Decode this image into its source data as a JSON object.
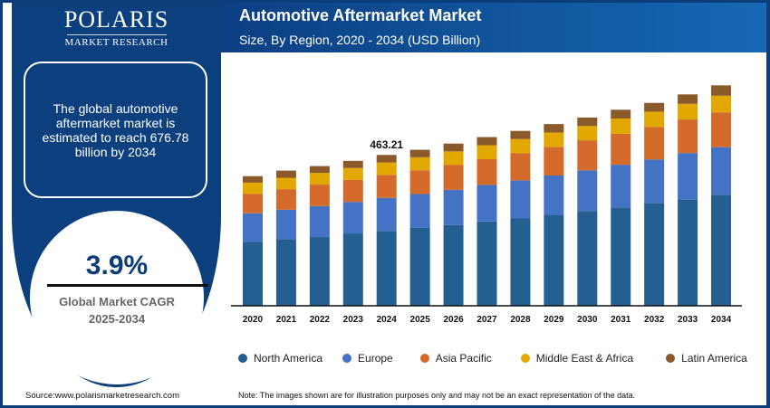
{
  "brand": {
    "name": "POLARIS",
    "tagline": "MARKET RESEARCH"
  },
  "summary": "The global automotive aftermarket market is estimated to reach 676.78 billion by 2034",
  "cagr": {
    "value": "3.9%",
    "label": "Global Market CAGR",
    "period": "2025-2034"
  },
  "source": "Source:www.polarismarketresearch.com",
  "note": "Note: The images shown are for illustration purposes only and may not be an exact representation of the data.",
  "chart_data": {
    "type": "bar",
    "stacked": true,
    "title": "Automotive Aftermarket Market",
    "subtitle": "Size, By Region, 2020 - 2034 (USD Billion)",
    "categories": [
      "2020",
      "2021",
      "2022",
      "2023",
      "2024",
      "2025",
      "2026",
      "2027",
      "2028",
      "2029",
      "2030",
      "2031",
      "2032",
      "2033",
      "2034"
    ],
    "series": [
      {
        "name": "North America",
        "color": "#245f91",
        "values": [
          196,
          205,
          211,
          222,
          230,
          239,
          248,
          259,
          268,
          279,
          290,
          302,
          315,
          327,
          341
        ]
      },
      {
        "name": "Europe",
        "color": "#4472c4",
        "values": [
          88,
          90,
          95,
          97,
          101,
          104,
          108,
          112,
          117,
          121,
          126,
          131,
          134,
          142,
          146
        ]
      },
      {
        "name": "Asia Pacific",
        "color": "#d46b2b",
        "values": [
          60,
          63,
          66,
          68,
          71,
          73,
          77,
          79,
          84,
          88,
          92,
          95,
          100,
          103,
          107
        ]
      },
      {
        "name": "Middle East & Africa",
        "color": "#e3a800",
        "values": [
          34,
          35,
          36,
          36,
          38,
          40,
          41,
          43,
          43,
          44,
          44,
          47,
          47,
          48,
          51
        ]
      },
      {
        "name": "Latin America",
        "color": "#8b5a2b",
        "values": [
          20,
          22,
          21,
          22,
          23.21,
          23,
          24,
          25,
          25,
          26,
          26,
          27,
          27,
          29,
          31.78
        ]
      }
    ],
    "annotations": [
      {
        "category": "2024",
        "text": "463.21"
      }
    ],
    "ylim": [
      0,
      780
    ],
    "grid": false,
    "legend": "bottom"
  }
}
